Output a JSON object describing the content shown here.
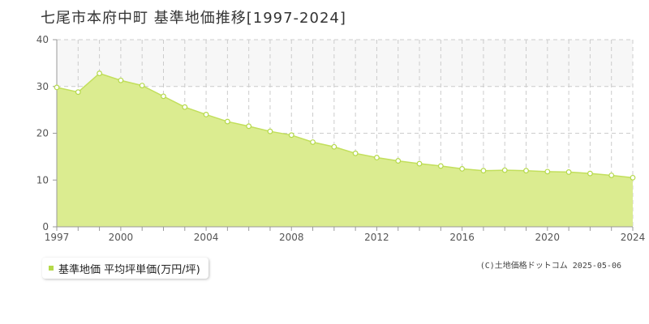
{
  "title": "七尾市本府中町 基準地価推移[1997-2024]",
  "colors": {
    "area_fill": "#dbec90",
    "line": "#c2df5c",
    "point_fill": "#ffffff",
    "point_stroke": "#b5d94a",
    "grid": "#cccccc",
    "band": "#f7f7f7",
    "axis": "#999999",
    "legend_marker": "#b5d94a"
  },
  "legend": {
    "label": "基準地価 平均坪単価(万円/坪)"
  },
  "copyright": "(C)土地価格ドットコム 2025-05-06",
  "chart_data": {
    "type": "area",
    "title": "七尾市本府中町 基準地価推移[1997-2024]",
    "x": [
      1997,
      1998,
      1999,
      2000,
      2001,
      2002,
      2003,
      2004,
      2005,
      2006,
      2007,
      2008,
      2009,
      2010,
      2011,
      2012,
      2013,
      2014,
      2015,
      2016,
      2017,
      2018,
      2019,
      2020,
      2021,
      2022,
      2023,
      2024
    ],
    "series": [
      {
        "name": "基準地価 平均坪単価(万円/坪)",
        "values": [
          29.8,
          28.8,
          32.8,
          31.3,
          30.2,
          27.9,
          25.6,
          24.0,
          22.5,
          21.5,
          20.4,
          19.6,
          18.1,
          17.1,
          15.7,
          14.8,
          14.1,
          13.5,
          13.0,
          12.4,
          12.0,
          12.1,
          12.0,
          11.8,
          11.7,
          11.4,
          11.0,
          10.5
        ]
      }
    ],
    "xlim": [
      1997,
      2024
    ],
    "ylim": [
      0,
      40
    ],
    "x_ticks": [
      1997,
      2000,
      2004,
      2008,
      2012,
      2016,
      2020,
      2024
    ],
    "y_ticks": [
      0,
      10,
      20,
      30,
      40
    ],
    "xlabel": "",
    "ylabel": "",
    "grid": true,
    "legend_position": "bottom-left"
  }
}
